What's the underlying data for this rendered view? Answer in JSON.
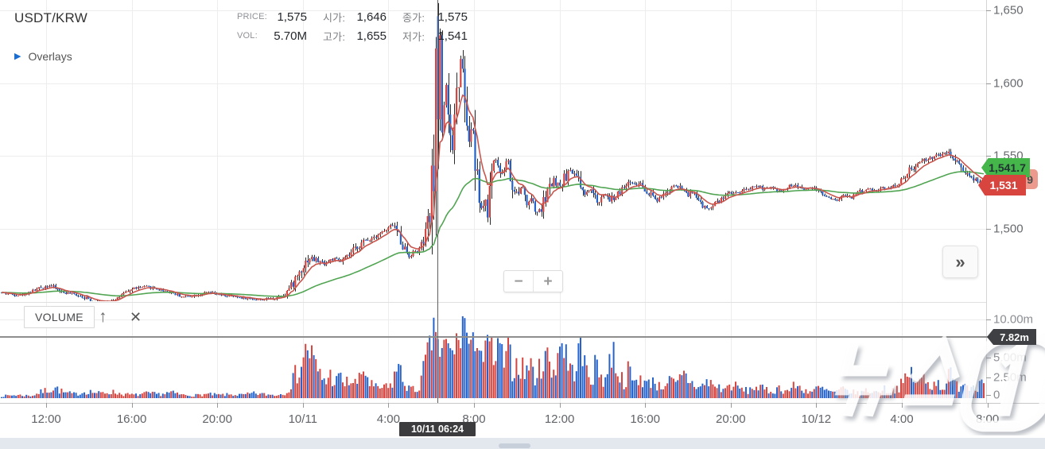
{
  "header": {
    "symbol": "USDT/KRW",
    "overlays_label": "Overlays"
  },
  "stats": [
    {
      "label": "PRICE:",
      "value": "1,575"
    },
    {
      "label": "VOL:",
      "value": "5.70M"
    },
    {
      "label": "시가:",
      "value": "1,646"
    },
    {
      "label": "고가:",
      "value": "1,655"
    },
    {
      "label": "종가:",
      "value": "1,575"
    },
    {
      "label": "저가:",
      "value": "1,541"
    }
  ],
  "volume_panel": {
    "title": "VOLUME",
    "up_icon": "↑",
    "close_icon": "✕"
  },
  "controls": {
    "zoom_out": "−",
    "zoom_in": "+",
    "collapse": "»"
  },
  "tags": {
    "ma_green": "1,541.7",
    "ma_red_partial": "9",
    "last_price": "1,531",
    "volume_crosshair": "7.82m"
  },
  "crosshair": {
    "time_label": "10/11 06:24"
  },
  "watermark": "뉴스1",
  "colors": {
    "up": "#d64540",
    "down": "#2663cc",
    "ma_fast": "#c9564e",
    "ma_slow": "#51a552",
    "grid": "#ededed",
    "crosshair": "#8e8e8e",
    "tag_green": "#45b649",
    "tag_red": "#d8453f"
  },
  "chart_data": {
    "type": "candlestick",
    "title": "USDT/KRW",
    "hovered_candle": {
      "time": "10/11 06:24",
      "open": 1646,
      "high": 1655,
      "low": 1541,
      "close": 1575,
      "volume_display": "5.70M"
    },
    "price_axis": {
      "ticks": [
        "1,650",
        "1,600",
        "1,550",
        "1,500"
      ],
      "tick_values": [
        1650,
        1600,
        1550,
        1500
      ],
      "range": [
        1443,
        1657
      ]
    },
    "volume_axis": {
      "ticks": [
        "10.00m",
        "5.00m",
        "2.50m",
        "0"
      ],
      "tick_values": [
        10,
        5,
        2.5,
        0
      ],
      "crosshair_value": "7.82m"
    },
    "x_axis": {
      "ticks": [
        "12:00",
        "16:00",
        "20:00",
        "10/11",
        "4:00",
        "8:00",
        "12:00",
        "16:00",
        "20:00",
        "10/12",
        "4:00",
        "8:00"
      ]
    },
    "last_price": 1531,
    "ma_slow_value": 1541.7,
    "grid": true,
    "legend_position": "none",
    "price_path": [
      [
        0,
        1456
      ],
      [
        25,
        1454
      ],
      [
        50,
        1459
      ],
      [
        62,
        1461
      ],
      [
        80,
        1456
      ],
      [
        100,
        1454
      ],
      [
        118,
        1450
      ],
      [
        132,
        1449
      ],
      [
        150,
        1453
      ],
      [
        168,
        1459
      ],
      [
        185,
        1460
      ],
      [
        200,
        1458
      ],
      [
        215,
        1456
      ],
      [
        230,
        1453
      ],
      [
        245,
        1454
      ],
      [
        262,
        1456
      ],
      [
        278,
        1454
      ],
      [
        295,
        1453
      ],
      [
        310,
        1452
      ],
      [
        328,
        1451
      ],
      [
        345,
        1452
      ],
      [
        358,
        1455
      ],
      [
        368,
        1462
      ],
      [
        378,
        1472
      ],
      [
        388,
        1480
      ],
      [
        398,
        1478
      ],
      [
        408,
        1476
      ],
      [
        418,
        1479
      ],
      [
        428,
        1477
      ],
      [
        438,
        1481
      ],
      [
        448,
        1487
      ],
      [
        458,
        1491
      ],
      [
        468,
        1494
      ],
      [
        478,
        1497
      ],
      [
        487,
        1499
      ],
      [
        494,
        1503
      ],
      [
        500,
        1497
      ],
      [
        507,
        1488
      ],
      [
        514,
        1481
      ],
      [
        521,
        1484
      ],
      [
        528,
        1486
      ],
      [
        534,
        1493
      ],
      [
        539,
        1505
      ],
      [
        543,
        1525
      ],
      [
        546,
        1560
      ],
      [
        549,
        1615
      ],
      [
        551,
        1646
      ],
      [
        553,
        1625
      ],
      [
        556,
        1565
      ],
      [
        559,
        1586
      ],
      [
        562,
        1605
      ],
      [
        565,
        1570
      ],
      [
        568,
        1546
      ],
      [
        571,
        1572
      ],
      [
        574,
        1592
      ],
      [
        577,
        1607
      ],
      [
        580,
        1622
      ],
      [
        583,
        1612
      ],
      [
        586,
        1590
      ],
      [
        589,
        1562
      ],
      [
        592,
        1571
      ],
      [
        595,
        1560
      ],
      [
        598,
        1540
      ],
      [
        601,
        1522
      ],
      [
        604,
        1509
      ],
      [
        607,
        1516
      ],
      [
        610,
        1524
      ],
      [
        613,
        1512
      ],
      [
        616,
        1530
      ],
      [
        620,
        1542
      ],
      [
        624,
        1546
      ],
      [
        628,
        1540
      ],
      [
        632,
        1535
      ],
      [
        636,
        1545
      ],
      [
        640,
        1542
      ],
      [
        644,
        1532
      ],
      [
        648,
        1522
      ],
      [
        652,
        1525
      ],
      [
        656,
        1529
      ],
      [
        660,
        1518
      ],
      [
        664,
        1514
      ],
      [
        668,
        1523
      ],
      [
        672,
        1516
      ],
      [
        676,
        1511
      ],
      [
        681,
        1514
      ],
      [
        686,
        1521
      ],
      [
        691,
        1528
      ],
      [
        696,
        1533
      ],
      [
        701,
        1530
      ],
      [
        706,
        1532
      ],
      [
        712,
        1536
      ],
      [
        718,
        1539
      ],
      [
        724,
        1536
      ],
      [
        730,
        1529
      ],
      [
        736,
        1524
      ],
      [
        742,
        1527
      ],
      [
        748,
        1521
      ],
      [
        754,
        1518
      ],
      [
        760,
        1523
      ],
      [
        766,
        1519
      ],
      [
        772,
        1521
      ],
      [
        778,
        1525
      ],
      [
        785,
        1529
      ],
      [
        792,
        1532
      ],
      [
        800,
        1531
      ],
      [
        808,
        1529
      ],
      [
        816,
        1524
      ],
      [
        824,
        1519
      ],
      [
        832,
        1521
      ],
      [
        840,
        1526
      ],
      [
        848,
        1529
      ],
      [
        856,
        1527
      ],
      [
        864,
        1522
      ],
      [
        872,
        1525
      ],
      [
        880,
        1518
      ],
      [
        888,
        1513
      ],
      [
        896,
        1515
      ],
      [
        904,
        1519
      ],
      [
        912,
        1522
      ],
      [
        920,
        1525
      ],
      [
        928,
        1524
      ],
      [
        936,
        1526
      ],
      [
        944,
        1528
      ],
      [
        952,
        1530
      ],
      [
        960,
        1527
      ],
      [
        968,
        1528
      ],
      [
        976,
        1526
      ],
      [
        984,
        1527
      ],
      [
        992,
        1529
      ],
      [
        1000,
        1530
      ],
      [
        1010,
        1527
      ],
      [
        1020,
        1528
      ],
      [
        1030,
        1525
      ],
      [
        1040,
        1522
      ],
      [
        1050,
        1519
      ],
      [
        1060,
        1523
      ],
      [
        1070,
        1521
      ],
      [
        1080,
        1525
      ],
      [
        1090,
        1527
      ],
      [
        1100,
        1526
      ],
      [
        1110,
        1528
      ],
      [
        1120,
        1529
      ],
      [
        1128,
        1531
      ],
      [
        1136,
        1535
      ],
      [
        1144,
        1540
      ],
      [
        1152,
        1544
      ],
      [
        1160,
        1546
      ],
      [
        1168,
        1548
      ],
      [
        1176,
        1550
      ],
      [
        1184,
        1551
      ],
      [
        1192,
        1553
      ],
      [
        1198,
        1550
      ],
      [
        1204,
        1546
      ],
      [
        1210,
        1542
      ],
      [
        1216,
        1538
      ],
      [
        1222,
        1535
      ],
      [
        1228,
        1533
      ],
      [
        1234,
        1532
      ],
      [
        1240,
        1531
      ]
    ],
    "volume_path": [
      [
        0,
        0.25
      ],
      [
        20,
        0.4
      ],
      [
        40,
        0.3
      ],
      [
        55,
        0.9
      ],
      [
        70,
        1.3
      ],
      [
        80,
        0.7
      ],
      [
        95,
        0.5
      ],
      [
        110,
        0.9
      ],
      [
        125,
        0.6
      ],
      [
        140,
        0.8
      ],
      [
        155,
        0.5
      ],
      [
        170,
        0.4
      ],
      [
        185,
        0.6
      ],
      [
        200,
        0.5
      ],
      [
        215,
        0.7
      ],
      [
        230,
        0.4
      ],
      [
        245,
        0.35
      ],
      [
        260,
        0.5
      ],
      [
        275,
        0.4
      ],
      [
        290,
        0.45
      ],
      [
        305,
        0.4
      ],
      [
        320,
        0.6
      ],
      [
        335,
        0.45
      ],
      [
        350,
        0.4
      ],
      [
        360,
        0.8
      ],
      [
        368,
        2.2
      ],
      [
        374,
        3.4
      ],
      [
        380,
        4.6
      ],
      [
        386,
        6.8
      ],
      [
        392,
        5.2
      ],
      [
        398,
        3.6
      ],
      [
        404,
        2.6
      ],
      [
        410,
        2.2
      ],
      [
        416,
        2.9
      ],
      [
        422,
        2.0
      ],
      [
        428,
        2.6
      ],
      [
        434,
        1.7
      ],
      [
        440,
        2.3
      ],
      [
        446,
        1.8
      ],
      [
        452,
        2.2
      ],
      [
        458,
        3.9
      ],
      [
        464,
        2.0
      ],
      [
        470,
        1.4
      ],
      [
        476,
        1.1
      ],
      [
        482,
        1.5
      ],
      [
        488,
        1.2
      ],
      [
        494,
        2.1
      ],
      [
        500,
        4.3
      ],
      [
        506,
        2.4
      ],
      [
        512,
        1.5
      ],
      [
        518,
        1.1
      ],
      [
        524,
        0.9
      ],
      [
        530,
        2.4
      ],
      [
        535,
        4.3
      ],
      [
        540,
        6.3
      ],
      [
        545,
        7.9
      ],
      [
        548,
        9.6
      ],
      [
        552,
        6.2
      ],
      [
        556,
        5.2
      ],
      [
        560,
        7.4
      ],
      [
        564,
        6.1
      ],
      [
        568,
        5.3
      ],
      [
        572,
        6.6
      ],
      [
        576,
        7.4
      ],
      [
        580,
        8.1
      ],
      [
        584,
        10.8
      ],
      [
        588,
        7.2
      ],
      [
        592,
        6.1
      ],
      [
        596,
        7.0
      ],
      [
        600,
        8.2
      ],
      [
        604,
        6.2
      ],
      [
        608,
        5.1
      ],
      [
        612,
        6.6
      ],
      [
        616,
        7.2
      ],
      [
        620,
        5.6
      ],
      [
        624,
        4.6
      ],
      [
        628,
        6.1
      ],
      [
        632,
        5.1
      ],
      [
        636,
        4.1
      ],
      [
        640,
        5.6
      ],
      [
        644,
        4.3
      ],
      [
        648,
        3.6
      ],
      [
        652,
        4.9
      ],
      [
        656,
        3.9
      ],
      [
        660,
        3.1
      ],
      [
        665,
        4.6
      ],
      [
        670,
        3.3
      ],
      [
        675,
        2.6
      ],
      [
        680,
        3.9
      ],
      [
        685,
        6.9
      ],
      [
        690,
        4.1
      ],
      [
        695,
        3.1
      ],
      [
        700,
        5.3
      ],
      [
        705,
        7.2
      ],
      [
        710,
        6.1
      ],
      [
        715,
        4.1
      ],
      [
        720,
        3.1
      ],
      [
        725,
        5.1
      ],
      [
        730,
        6.4
      ],
      [
        735,
        4.1
      ],
      [
        740,
        3.3
      ],
      [
        745,
        2.6
      ],
      [
        750,
        4.3
      ],
      [
        755,
        3.1
      ],
      [
        760,
        2.3
      ],
      [
        765,
        3.6
      ],
      [
        770,
        6.4
      ],
      [
        775,
        4.4
      ],
      [
        780,
        2.6
      ],
      [
        785,
        2.1
      ],
      [
        790,
        3.3
      ],
      [
        795,
        2.3
      ],
      [
        800,
        1.9
      ],
      [
        805,
        2.9
      ],
      [
        810,
        2.1
      ],
      [
        815,
        1.6
      ],
      [
        820,
        2.6
      ],
      [
        825,
        1.9
      ],
      [
        830,
        1.3
      ],
      [
        840,
        2.3
      ],
      [
        850,
        1.6
      ],
      [
        860,
        2.9
      ],
      [
        870,
        1.9
      ],
      [
        880,
        1.3
      ],
      [
        890,
        2.1
      ],
      [
        900,
        1.5
      ],
      [
        910,
        1.1
      ],
      [
        920,
        1.7
      ],
      [
        930,
        1.2
      ],
      [
        940,
        0.9
      ],
      [
        950,
        1.5
      ],
      [
        960,
        1.1
      ],
      [
        970,
        0.8
      ],
      [
        980,
        1.3
      ],
      [
        990,
        0.9
      ],
      [
        1000,
        1.6
      ],
      [
        1010,
        1.1
      ],
      [
        1020,
        0.8
      ],
      [
        1030,
        1.3
      ],
      [
        1040,
        0.9
      ],
      [
        1050,
        0.7
      ],
      [
        1060,
        1.1
      ],
      [
        1070,
        0.8
      ],
      [
        1080,
        0.6
      ],
      [
        1090,
        1.0
      ],
      [
        1100,
        0.7
      ],
      [
        1110,
        1.2
      ],
      [
        1120,
        0.9
      ],
      [
        1130,
        1.4
      ],
      [
        1140,
        2.3
      ],
      [
        1145,
        3.3
      ],
      [
        1150,
        2.4
      ],
      [
        1155,
        1.7
      ],
      [
        1160,
        2.7
      ],
      [
        1165,
        2.0
      ],
      [
        1170,
        1.5
      ],
      [
        1175,
        2.4
      ],
      [
        1180,
        1.8
      ],
      [
        1185,
        1.3
      ],
      [
        1190,
        2.2
      ],
      [
        1195,
        2.9
      ],
      [
        1200,
        1.9
      ],
      [
        1205,
        1.4
      ],
      [
        1210,
        2.5
      ],
      [
        1215,
        1.8
      ],
      [
        1220,
        1.3
      ],
      [
        1225,
        2.0
      ],
      [
        1230,
        1.5
      ],
      [
        1235,
        2.7
      ],
      [
        1240,
        1.9
      ]
    ]
  }
}
